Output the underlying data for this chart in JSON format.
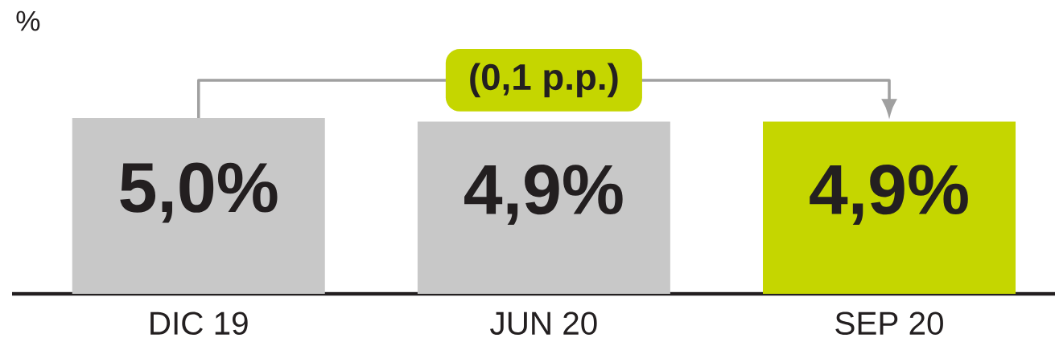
{
  "chart_data": {
    "type": "bar",
    "ylabel": "%",
    "categories": [
      "DIC 19",
      "JUN 20",
      "SEP 20"
    ],
    "values": [
      5.0,
      4.9,
      4.9
    ],
    "colors": [
      "#c8c8c8",
      "#c8c8c8",
      "#c5d600"
    ],
    "value_labels": [
      "5,0%",
      "4,9%",
      "4,9%"
    ],
    "annotations": [
      "(0,1 p.p.)"
    ]
  }
}
